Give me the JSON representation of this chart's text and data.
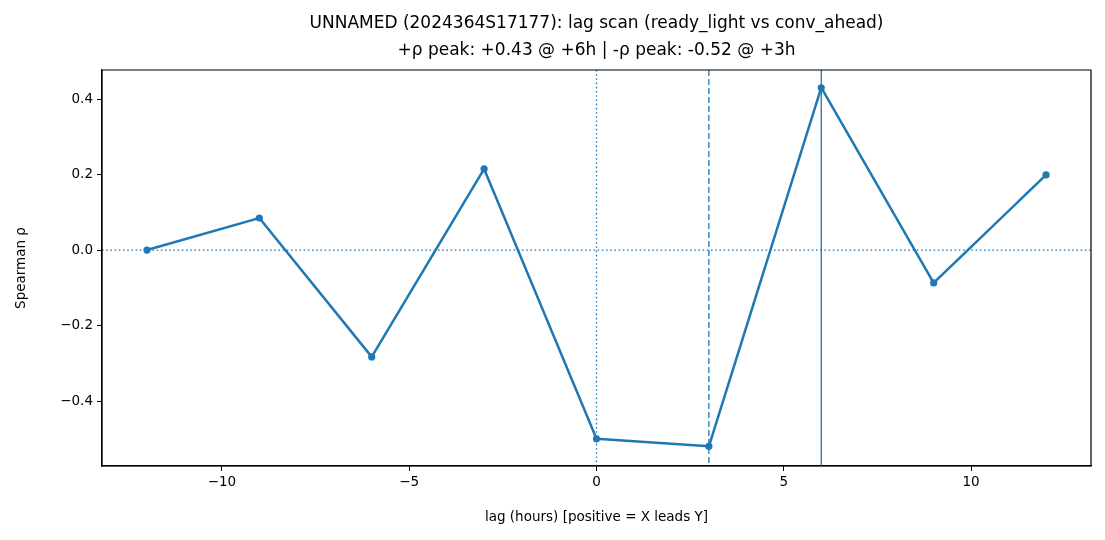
{
  "chart_data": {
    "type": "line",
    "title": "UNNAMED (2024364S17177): lag scan (ready_light vs conv_ahead)",
    "subtitle": "+ρ peak: +0.43 @ +6h | -ρ peak: -0.52 @ +3h",
    "xlabel": "lag (hours) [positive = X leads Y]",
    "ylabel": "Spearman ρ",
    "x": [
      -12,
      -9,
      -6,
      -3,
      0,
      3,
      6,
      9,
      12
    ],
    "series": [
      {
        "color": "#1f77b4",
        "values": [
          0,
          0.085,
          -0.283,
          0.215,
          -0.5,
          -0.52,
          0.43,
          -0.087,
          0.199
        ]
      }
    ],
    "xlim": [
      -13.2,
      13.2
    ],
    "ylim": [
      -0.572,
      0.477
    ],
    "xticks": [
      {
        "value": -10,
        "label": "−10"
      },
      {
        "value": -5,
        "label": "−5"
      },
      0,
      5,
      10
    ],
    "yticks": [
      {
        "value": -0.4,
        "label": "−0.4"
      },
      {
        "value": -0.2,
        "label": "−0.2"
      },
      {
        "value": 0,
        "label": "0.0"
      },
      0.2,
      0.4
    ],
    "marker": "circle",
    "line_style": "solid",
    "ref_lines": [
      {
        "axis": "x",
        "value": 0,
        "color": "#1f77b4",
        "line_style": "dotted"
      },
      {
        "axis": "x",
        "value": 3,
        "color": "#1f77b4",
        "line_style": "dashed"
      },
      {
        "axis": "x",
        "value": 6,
        "color": "#1f77b4",
        "line_style": "solid"
      },
      {
        "axis": "y",
        "value": 0,
        "color": "#1f77b4",
        "line_style": "dotted"
      }
    ]
  }
}
